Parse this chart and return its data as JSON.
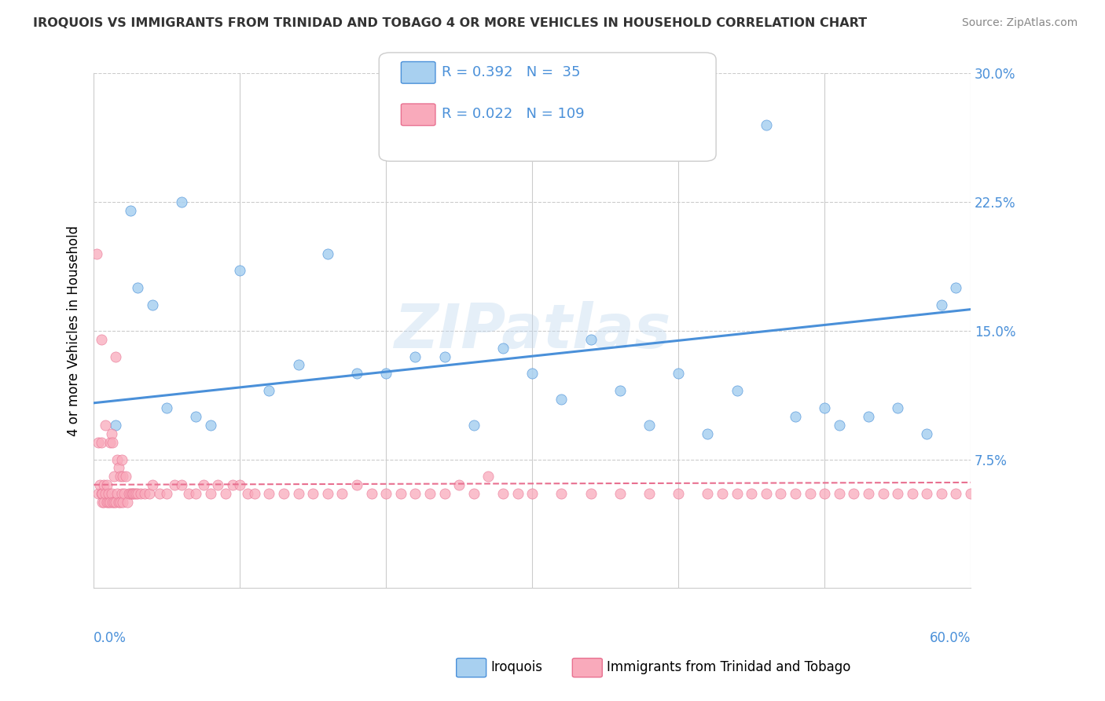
{
  "title": "IROQUOIS VS IMMIGRANTS FROM TRINIDAD AND TOBAGO 4 OR MORE VEHICLES IN HOUSEHOLD CORRELATION CHART",
  "source": "Source: ZipAtlas.com",
  "yaxis_label": "4 or more Vehicles in Household",
  "xmin": 0.0,
  "xmax": 60.0,
  "ymin": 0.0,
  "ymax": 30.0,
  "blue_R": 0.392,
  "blue_N": 35,
  "pink_R": 0.022,
  "pink_N": 109,
  "blue_color": "#A8D0F0",
  "pink_color": "#F9AABB",
  "blue_line_color": "#4A90D9",
  "pink_line_color": "#E87090",
  "legend_label_blue": "Iroquois",
  "legend_label_pink": "Immigrants from Trinidad and Tobago",
  "watermark": "ZIPatlas",
  "blue_scatter_x": [
    1.5,
    2.5,
    3.0,
    4.0,
    5.0,
    6.0,
    7.0,
    8.0,
    10.0,
    12.0,
    14.0,
    16.0,
    18.0,
    20.0,
    22.0,
    24.0,
    26.0,
    28.0,
    30.0,
    32.0,
    34.0,
    36.0,
    38.0,
    40.0,
    42.0,
    44.0,
    46.0,
    48.0,
    50.0,
    51.0,
    53.0,
    55.0,
    57.0,
    58.0,
    59.0
  ],
  "blue_scatter_y": [
    9.5,
    22.0,
    17.5,
    16.5,
    10.5,
    22.5,
    10.0,
    9.5,
    18.5,
    11.5,
    13.0,
    19.5,
    12.5,
    12.5,
    13.5,
    13.5,
    9.5,
    14.0,
    12.5,
    11.0,
    14.5,
    11.5,
    9.5,
    12.5,
    9.0,
    11.5,
    27.0,
    10.0,
    10.5,
    9.5,
    10.0,
    10.5,
    9.0,
    16.5,
    17.5
  ],
  "pink_scatter_x": [
    0.2,
    0.3,
    0.3,
    0.4,
    0.5,
    0.5,
    0.5,
    0.6,
    0.6,
    0.7,
    0.7,
    0.8,
    0.8,
    0.9,
    0.9,
    1.0,
    1.0,
    1.1,
    1.1,
    1.2,
    1.2,
    1.3,
    1.3,
    1.4,
    1.4,
    1.5,
    1.5,
    1.6,
    1.6,
    1.7,
    1.7,
    1.8,
    1.8,
    1.9,
    1.9,
    2.0,
    2.0,
    2.1,
    2.2,
    2.3,
    2.4,
    2.5,
    2.6,
    2.7,
    2.8,
    2.9,
    3.0,
    3.2,
    3.5,
    3.8,
    4.0,
    4.5,
    5.0,
    5.5,
    6.0,
    6.5,
    7.0,
    7.5,
    8.0,
    8.5,
    9.0,
    9.5,
    10.0,
    10.5,
    11.0,
    12.0,
    13.0,
    14.0,
    15.0,
    16.0,
    17.0,
    18.0,
    19.0,
    20.0,
    21.0,
    22.0,
    23.0,
    24.0,
    25.0,
    26.0,
    27.0,
    28.0,
    29.0,
    30.0,
    32.0,
    34.0,
    36.0,
    38.0,
    40.0,
    42.0,
    43.0,
    44.0,
    45.0,
    46.0,
    47.0,
    48.0,
    49.0,
    50.0,
    51.0,
    52.0,
    53.0,
    54.0,
    55.0,
    56.0,
    57.0,
    58.0,
    59.0,
    60.0,
    61.0
  ],
  "pink_scatter_y": [
    19.5,
    8.5,
    5.5,
    6.0,
    5.5,
    8.5,
    14.5,
    5.0,
    5.5,
    5.0,
    6.0,
    5.5,
    9.5,
    5.0,
    6.0,
    5.0,
    5.5,
    5.0,
    8.5,
    5.5,
    9.0,
    5.0,
    8.5,
    5.0,
    6.5,
    5.0,
    13.5,
    5.5,
    7.5,
    5.0,
    7.0,
    5.0,
    6.5,
    5.5,
    7.5,
    5.0,
    6.5,
    5.5,
    6.5,
    5.0,
    5.5,
    5.5,
    5.5,
    5.5,
    5.5,
    5.5,
    5.5,
    5.5,
    5.5,
    5.5,
    6.0,
    5.5,
    5.5,
    6.0,
    6.0,
    5.5,
    5.5,
    6.0,
    5.5,
    6.0,
    5.5,
    6.0,
    6.0,
    5.5,
    5.5,
    5.5,
    5.5,
    5.5,
    5.5,
    5.5,
    5.5,
    6.0,
    5.5,
    5.5,
    5.5,
    5.5,
    5.5,
    5.5,
    6.0,
    5.5,
    6.5,
    5.5,
    5.5,
    5.5,
    5.5,
    5.5,
    5.5,
    5.5,
    5.5,
    5.5,
    5.5,
    5.5,
    5.5,
    5.5,
    5.5,
    5.5,
    5.5,
    5.5,
    5.5,
    5.5,
    5.5,
    5.5,
    5.5,
    5.5,
    5.5,
    5.5,
    5.5,
    5.5,
    5.5
  ]
}
